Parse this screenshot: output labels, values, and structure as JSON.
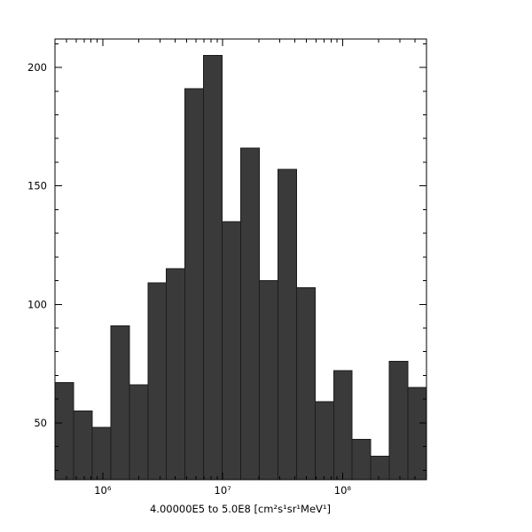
{
  "page": {
    "background": "#ffffff"
  },
  "chart_data": {
    "type": "bar",
    "subtype": "histogram",
    "title": "",
    "xlabel": "4.00000E5 to 5.0E8 [cm²s¹sr¹MeV¹]",
    "ylabel": "",
    "x_scale": "log10",
    "xlim": [
      400000,
      500000000
    ],
    "ylim": [
      26,
      212
    ],
    "n_bins": 20,
    "bin_mode": "equal-width-in-log10",
    "counts": [
      67,
      55,
      48,
      91,
      66,
      109,
      115,
      191,
      205,
      135,
      166,
      110,
      157,
      107,
      59,
      72,
      43,
      36,
      76,
      65
    ],
    "bar_color": "#3a3a3a",
    "bar_edge_color": "#1c1c1c",
    "frame_color": "#000000",
    "grid": false,
    "legend": null,
    "x_major_ticks": [
      {
        "value": 1000000,
        "label": "10⁶"
      },
      {
        "value": 10000000,
        "label": "10⁷"
      },
      {
        "value": 100000000,
        "label": "10⁸"
      }
    ],
    "x_minor_ticks": [
      500000,
      600000,
      700000,
      800000,
      900000,
      2000000,
      3000000,
      4000000,
      5000000,
      6000000,
      7000000,
      8000000,
      9000000,
      20000000,
      30000000,
      40000000,
      50000000,
      60000000,
      70000000,
      80000000,
      90000000,
      200000000,
      300000000,
      400000000
    ],
    "y_major_ticks": [
      {
        "value": 50,
        "label": "50"
      },
      {
        "value": 100,
        "label": "100"
      },
      {
        "value": 150,
        "label": "150"
      },
      {
        "value": 200,
        "label": "200"
      }
    ],
    "y_minor_step": 10
  }
}
